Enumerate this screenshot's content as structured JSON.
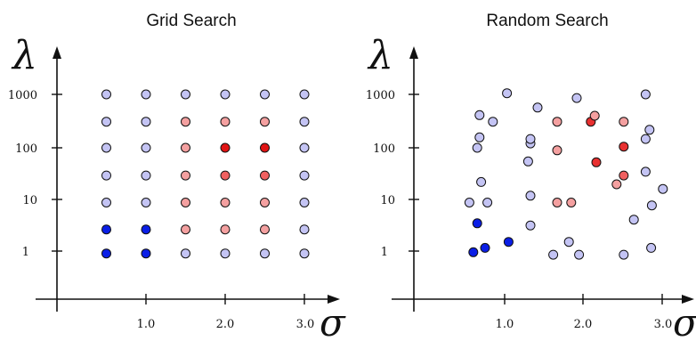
{
  "chart_data": [
    {
      "type": "scatter",
      "title": "Grid Search",
      "xlabel": "σ",
      "ylabel": "λ",
      "x_ticks": [
        "1.0",
        "2.0",
        "3.0"
      ],
      "y_ticks": [
        "1",
        "10",
        "100",
        "1000"
      ],
      "xlim": [
        0.0,
        3.3
      ],
      "ylim": [
        0.3,
        2000
      ],
      "y_scale": "log",
      "grid": false,
      "color_scale": [
        "#c4c4f4",
        "#0a1ee6",
        "#f4a0a0",
        "#e01414"
      ],
      "points": [
        {
          "x": 0.5,
          "y": 0.9,
          "color": "#0a1ee6"
        },
        {
          "x": 0.5,
          "y": 2.6,
          "color": "#0a1ee6"
        },
        {
          "x": 0.5,
          "y": 8.5,
          "color": "#c4c4f4"
        },
        {
          "x": 0.5,
          "y": 28,
          "color": "#c4c4f4"
        },
        {
          "x": 0.5,
          "y": 95,
          "color": "#c4c4f4"
        },
        {
          "x": 0.5,
          "y": 300,
          "color": "#c4c4f4"
        },
        {
          "x": 0.5,
          "y": 1000,
          "color": "#c4c4f4"
        },
        {
          "x": 1.0,
          "y": 0.9,
          "color": "#0a1ee6"
        },
        {
          "x": 1.0,
          "y": 2.6,
          "color": "#0a1ee6"
        },
        {
          "x": 1.0,
          "y": 8.5,
          "color": "#c4c4f4"
        },
        {
          "x": 1.0,
          "y": 28,
          "color": "#c4c4f4"
        },
        {
          "x": 1.0,
          "y": 95,
          "color": "#c4c4f4"
        },
        {
          "x": 1.0,
          "y": 300,
          "color": "#c4c4f4"
        },
        {
          "x": 1.0,
          "y": 1000,
          "color": "#c4c4f4"
        },
        {
          "x": 1.5,
          "y": 0.9,
          "color": "#c4c4f4"
        },
        {
          "x": 1.5,
          "y": 2.6,
          "color": "#f4a0a0"
        },
        {
          "x": 1.5,
          "y": 8.5,
          "color": "#f4a0a0"
        },
        {
          "x": 1.5,
          "y": 28,
          "color": "#f4a0a0"
        },
        {
          "x": 1.5,
          "y": 95,
          "color": "#f4a0a0"
        },
        {
          "x": 1.5,
          "y": 300,
          "color": "#f4a0a0"
        },
        {
          "x": 1.5,
          "y": 1000,
          "color": "#c4c4f4"
        },
        {
          "x": 2.0,
          "y": 0.9,
          "color": "#c4c4f4"
        },
        {
          "x": 2.0,
          "y": 2.6,
          "color": "#f4a0a0"
        },
        {
          "x": 2.0,
          "y": 8.5,
          "color": "#f4a0a0"
        },
        {
          "x": 2.0,
          "y": 28,
          "color": "#f06060"
        },
        {
          "x": 2.0,
          "y": 95,
          "color": "#e01414"
        },
        {
          "x": 2.0,
          "y": 300,
          "color": "#f4a0a0"
        },
        {
          "x": 2.0,
          "y": 1000,
          "color": "#c4c4f4"
        },
        {
          "x": 2.5,
          "y": 0.9,
          "color": "#c4c4f4"
        },
        {
          "x": 2.5,
          "y": 2.6,
          "color": "#f4a0a0"
        },
        {
          "x": 2.5,
          "y": 8.5,
          "color": "#f4a0a0"
        },
        {
          "x": 2.5,
          "y": 28,
          "color": "#f06060"
        },
        {
          "x": 2.5,
          "y": 95,
          "color": "#e01414"
        },
        {
          "x": 2.5,
          "y": 300,
          "color": "#f4a0a0"
        },
        {
          "x": 2.5,
          "y": 1000,
          "color": "#c4c4f4"
        },
        {
          "x": 3.0,
          "y": 0.9,
          "color": "#c4c4f4"
        },
        {
          "x": 3.0,
          "y": 2.6,
          "color": "#c4c4f4"
        },
        {
          "x": 3.0,
          "y": 8.5,
          "color": "#c4c4f4"
        },
        {
          "x": 3.0,
          "y": 28,
          "color": "#c4c4f4"
        },
        {
          "x": 3.0,
          "y": 95,
          "color": "#c4c4f4"
        },
        {
          "x": 3.0,
          "y": 300,
          "color": "#c4c4f4"
        },
        {
          "x": 3.0,
          "y": 1000,
          "color": "#c4c4f4"
        }
      ]
    },
    {
      "type": "scatter",
      "title": "Random Search",
      "xlabel": "σ",
      "ylabel": "λ",
      "x_ticks": [
        "1.0",
        "2.0",
        "3.0"
      ],
      "y_ticks": [
        "1",
        "10",
        "100",
        "1000"
      ],
      "xlim": [
        0.0,
        3.3
      ],
      "ylim": [
        0.3,
        2000
      ],
      "y_scale": "log",
      "grid": false,
      "color_scale": [
        "#c4c4f4",
        "#0a1ee6",
        "#f4a0a0",
        "#e01414"
      ],
      "points": [
        {
          "x": 0.6,
          "y": 0.95,
          "color": "#0a1ee6"
        },
        {
          "x": 0.75,
          "y": 1.15,
          "color": "#0a1ee6"
        },
        {
          "x": 1.05,
          "y": 1.5,
          "color": "#0a1ee6"
        },
        {
          "x": 0.65,
          "y": 3.4,
          "color": "#0a1ee6"
        },
        {
          "x": 0.55,
          "y": 8.5,
          "color": "#c4c4f4"
        },
        {
          "x": 0.78,
          "y": 8.5,
          "color": "#c4c4f4"
        },
        {
          "x": 0.7,
          "y": 21,
          "color": "#c4c4f4"
        },
        {
          "x": 0.65,
          "y": 95,
          "color": "#c4c4f4"
        },
        {
          "x": 0.68,
          "y": 150,
          "color": "#c4c4f4"
        },
        {
          "x": 0.68,
          "y": 400,
          "color": "#c4c4f4"
        },
        {
          "x": 0.85,
          "y": 300,
          "color": "#c4c4f4"
        },
        {
          "x": 1.03,
          "y": 1050,
          "color": "#c4c4f4"
        },
        {
          "x": 1.33,
          "y": 3.1,
          "color": "#c4c4f4"
        },
        {
          "x": 1.33,
          "y": 11.5,
          "color": "#c4c4f4"
        },
        {
          "x": 1.3,
          "y": 52,
          "color": "#c4c4f4"
        },
        {
          "x": 1.33,
          "y": 115,
          "color": "#c4c4f4"
        },
        {
          "x": 1.33,
          "y": 140,
          "color": "#c4c4f4"
        },
        {
          "x": 1.42,
          "y": 560,
          "color": "#c4c4f4"
        },
        {
          "x": 1.62,
          "y": 0.85,
          "color": "#c4c4f4"
        },
        {
          "x": 1.82,
          "y": 1.5,
          "color": "#c4c4f4"
        },
        {
          "x": 1.95,
          "y": 0.85,
          "color": "#c4c4f4"
        },
        {
          "x": 1.67,
          "y": 8.5,
          "color": "#f4a0a0"
        },
        {
          "x": 1.85,
          "y": 8.5,
          "color": "#f4a0a0"
        },
        {
          "x": 1.67,
          "y": 85,
          "color": "#f4a0a0"
        },
        {
          "x": 1.67,
          "y": 300,
          "color": "#f4a0a0"
        },
        {
          "x": 1.92,
          "y": 850,
          "color": "#c4c4f4"
        },
        {
          "x": 2.1,
          "y": 300,
          "color": "#e83030"
        },
        {
          "x": 2.15,
          "y": 390,
          "color": "#f4a0a0"
        },
        {
          "x": 2.17,
          "y": 50,
          "color": "#e83030"
        },
        {
          "x": 2.43,
          "y": 19,
          "color": "#f4a0a0"
        },
        {
          "x": 2.52,
          "y": 28,
          "color": "#f06060"
        },
        {
          "x": 2.52,
          "y": 100,
          "color": "#e83030"
        },
        {
          "x": 2.52,
          "y": 300,
          "color": "#f4a0a0"
        },
        {
          "x": 2.52,
          "y": 0.85,
          "color": "#c4c4f4"
        },
        {
          "x": 2.65,
          "y": 4.0,
          "color": "#c4c4f4"
        },
        {
          "x": 2.8,
          "y": 33,
          "color": "#c4c4f4"
        },
        {
          "x": 2.8,
          "y": 140,
          "color": "#c4c4f4"
        },
        {
          "x": 2.85,
          "y": 210,
          "color": "#c4c4f4"
        },
        {
          "x": 2.8,
          "y": 1000,
          "color": "#c4c4f4"
        },
        {
          "x": 2.88,
          "y": 7.5,
          "color": "#c4c4f4"
        },
        {
          "x": 2.87,
          "y": 1.15,
          "color": "#c4c4f4"
        },
        {
          "x": 3.02,
          "y": 15.5,
          "color": "#c4c4f4"
        }
      ]
    }
  ]
}
